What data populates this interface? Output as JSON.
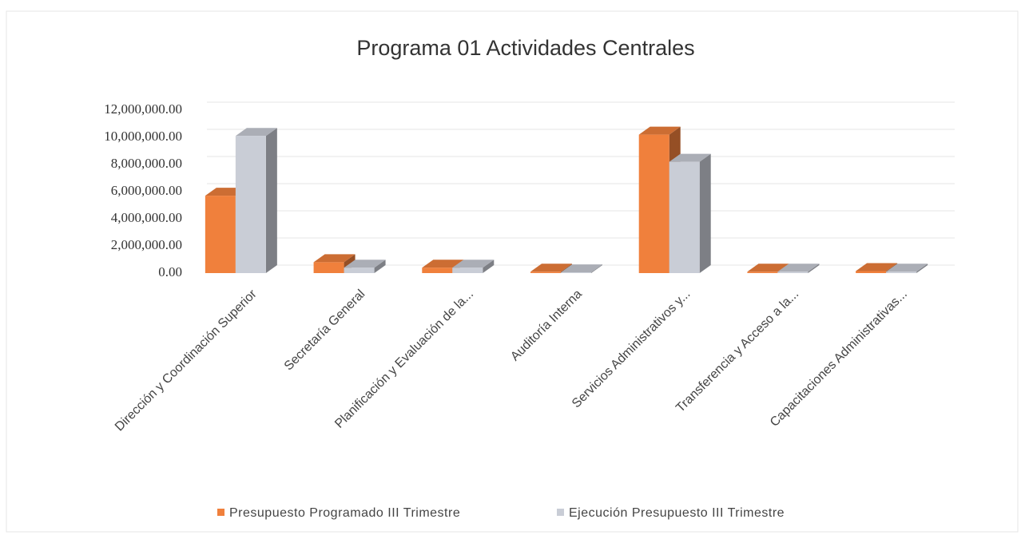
{
  "chart_data": {
    "type": "bar3d",
    "title": "Programa 01 Actividades Centrales",
    "categories": [
      "Dirección y Coordinación Superior",
      "Secretaría General",
      "Planificación y Evaluación de la...",
      "Auditoría Interna",
      "Servicios Administrativos y...",
      "Transferencia y Acceso a la...",
      "Capacitaciones Administrativas..."
    ],
    "series": [
      {
        "name": "Presupuesto Programado III Trimestre",
        "color": "#f0803c",
        "values": [
          5700000,
          800000,
          400000,
          100000,
          10200000,
          100000,
          150000
        ]
      },
      {
        "name": "Ejecución Presupuesto  III Trimestre",
        "color": "#c9cdd6",
        "values": [
          10100000,
          400000,
          400000,
          50000,
          8200000,
          100000,
          100000
        ]
      }
    ],
    "ylim": [
      0,
      12000000
    ],
    "yticks": [
      {
        "value": 0,
        "label": "0.00"
      },
      {
        "value": 2000000,
        "label": "2,000,000.00"
      },
      {
        "value": 4000000,
        "label": "4,000,000.00"
      },
      {
        "value": 6000000,
        "label": "6,000,000.00"
      },
      {
        "value": 8000000,
        "label": "8,000,000.00"
      },
      {
        "value": 10000000,
        "label": "10,000,000.00"
      },
      {
        "value": 12000000,
        "label": "12,000,000.00"
      }
    ],
    "grid": true
  }
}
